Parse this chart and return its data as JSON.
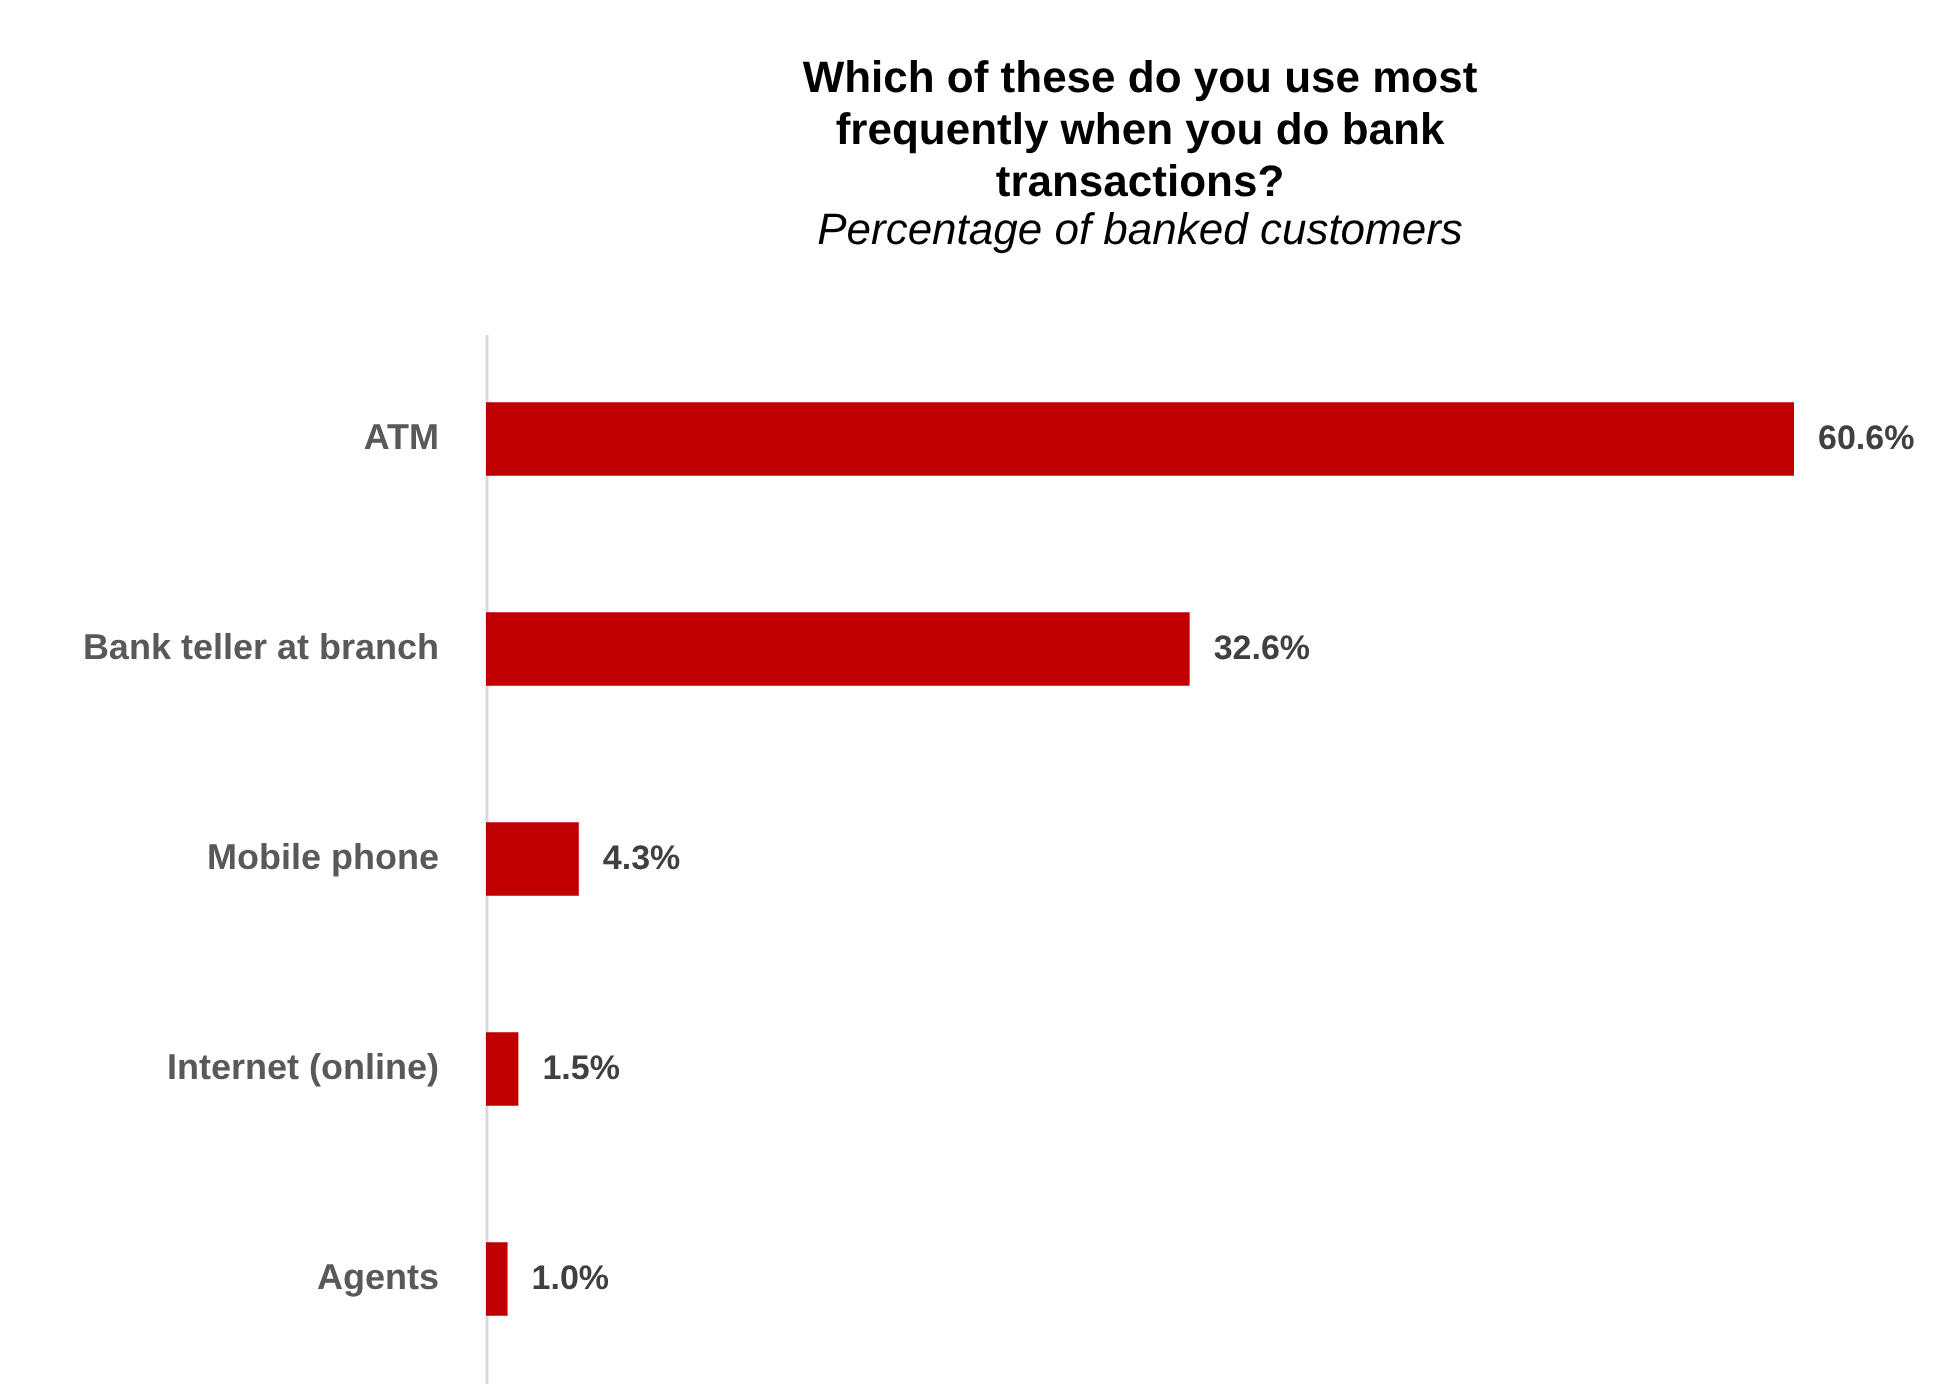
{
  "chart_data": {
    "type": "bar",
    "orientation": "horizontal",
    "title": "Which of these do you use most frequently when you do bank transactions?",
    "subtitle": "Percentage of banked customers",
    "categories": [
      "ATM",
      "Bank teller at branch",
      "Mobile phone",
      "Internet (online)",
      "Agents"
    ],
    "values": [
      60.6,
      32.6,
      4.3,
      1.5,
      1.0
    ],
    "value_labels": [
      "60.6%",
      "32.6%",
      "4.3%",
      "1.5%",
      "1.0%"
    ],
    "color": "#c00000"
  }
}
